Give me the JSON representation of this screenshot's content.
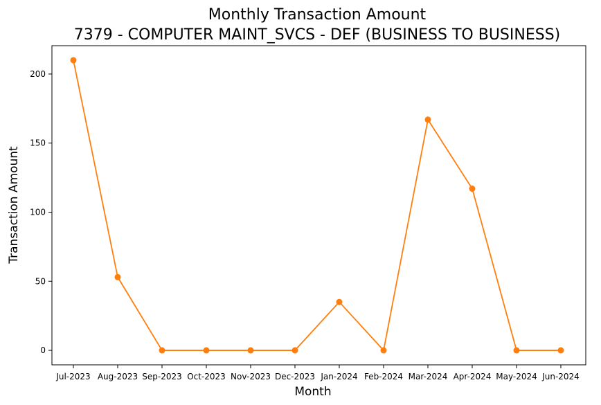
{
  "chart_data": {
    "type": "line",
    "title": "Monthly Transaction Amount",
    "subtitle": "7379 - COMPUTER MAINT_SVCS - DEF (BUSINESS TO BUSINESS)",
    "xlabel": "Month",
    "ylabel": "Transaction Amount",
    "categories": [
      "Jul-2023",
      "Aug-2023",
      "Sep-2023",
      "Oct-2023",
      "Nov-2023",
      "Dec-2023",
      "Jan-2024",
      "Feb-2024",
      "Mar-2024",
      "Apr-2024",
      "May-2024",
      "Jun-2024"
    ],
    "series": [
      {
        "values": [
          210,
          53,
          0,
          0,
          0,
          0,
          35,
          0,
          167,
          117,
          0,
          0
        ],
        "color": "#ff7f0e",
        "marker": "circle"
      }
    ],
    "ylim": [
      -10.5,
      220.5
    ],
    "yticks": [
      0,
      50,
      100,
      150,
      200
    ],
    "grid": false,
    "legend": "none"
  }
}
